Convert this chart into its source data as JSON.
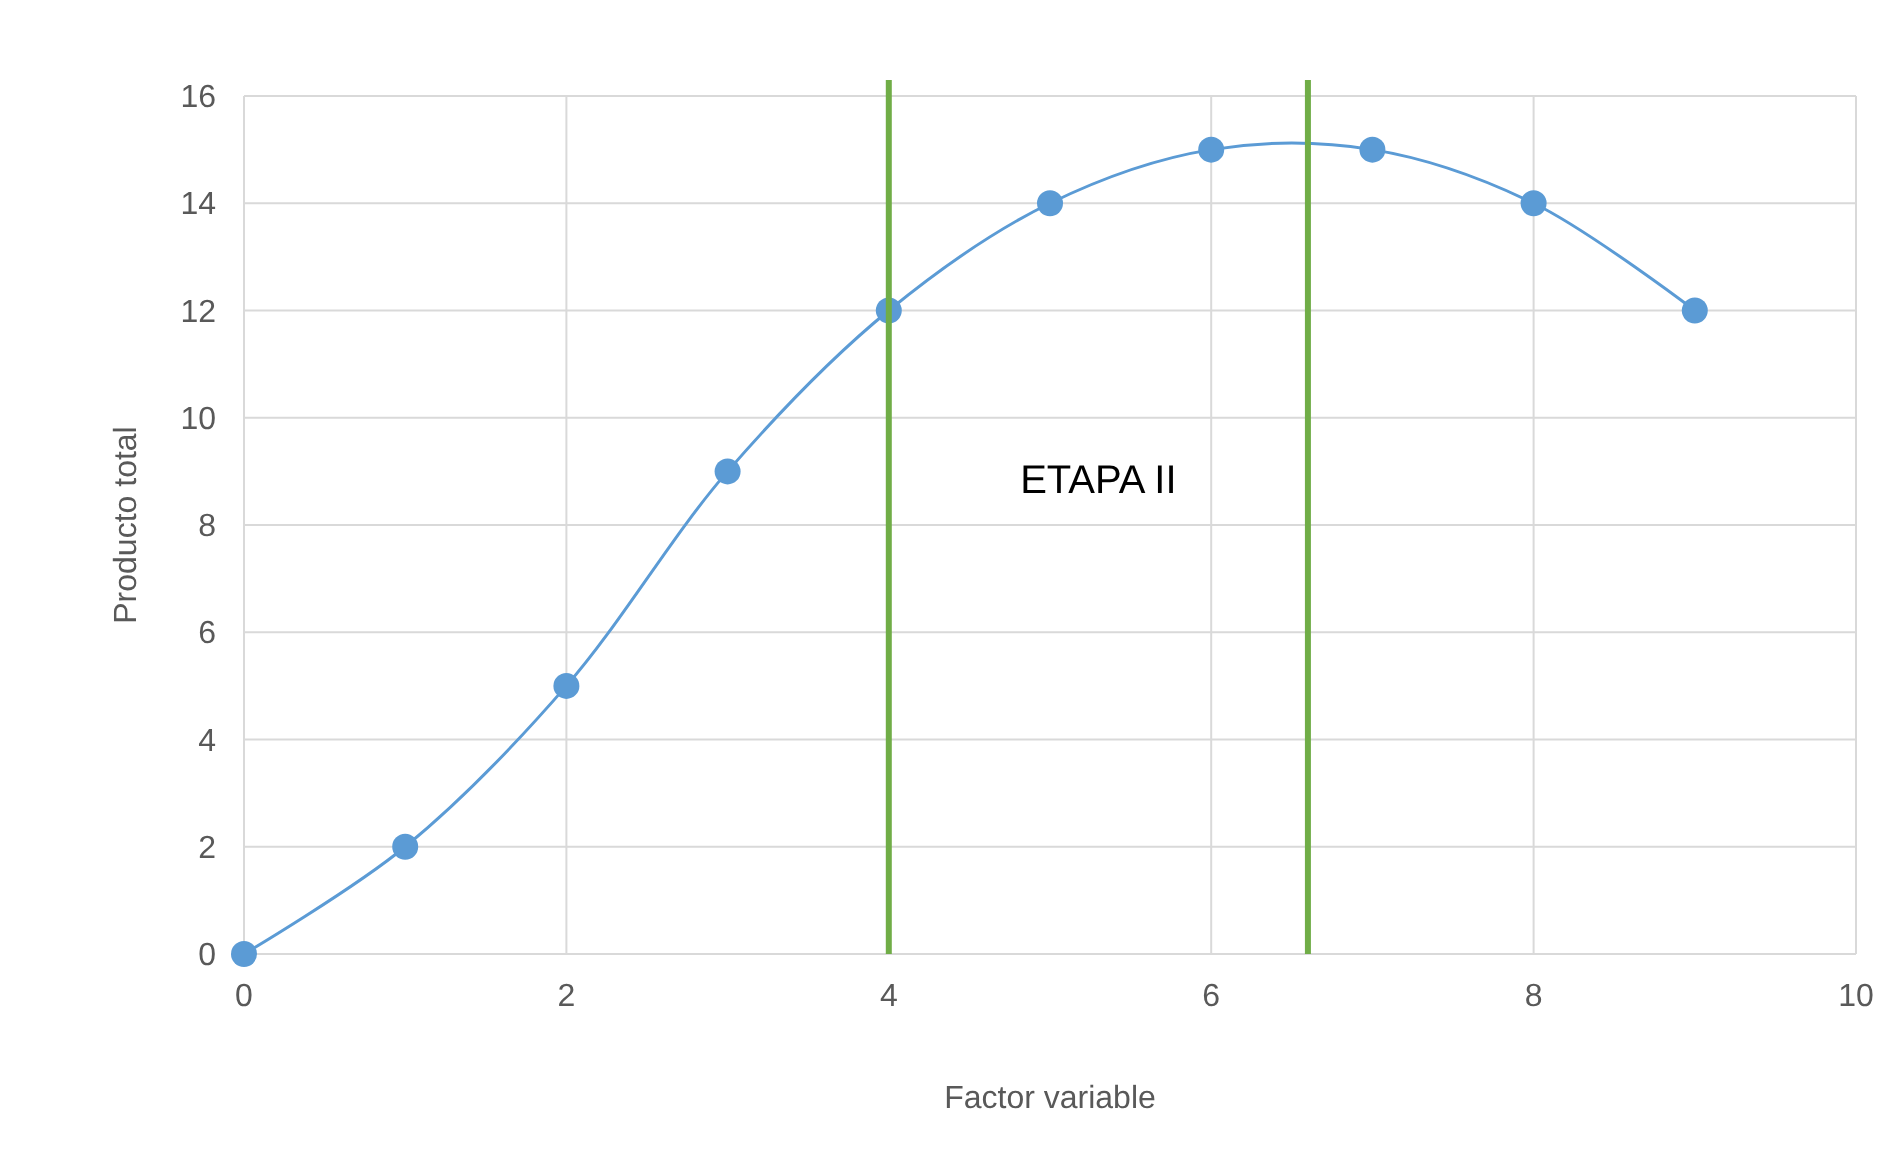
{
  "chart_data": {
    "type": "line",
    "xlabel": "Factor variable",
    "ylabel": "Producto total",
    "x": [
      0,
      1,
      2,
      3,
      4,
      5,
      6,
      7,
      8,
      9
    ],
    "series": [
      {
        "color": "#5b9bd5",
        "values": [
          0,
          2,
          5,
          9,
          12,
          14,
          15,
          15,
          14,
          12
        ]
      }
    ],
    "xlim": [
      0,
      10
    ],
    "xticks": [
      0,
      2,
      4,
      6,
      8,
      10
    ],
    "ylim": [
      0,
      16
    ],
    "yticks": [
      0,
      2,
      4,
      6,
      8,
      10,
      12,
      14,
      16
    ],
    "grid": true,
    "marker": "circle",
    "line_style": "solid",
    "ref_lines": [
      {
        "axis": "x",
        "value": 4,
        "color": "#70ad47"
      },
      {
        "axis": "x",
        "value": 6.6,
        "color": "#70ad47"
      }
    ],
    "annotations": [
      "ETAPA II"
    ]
  }
}
